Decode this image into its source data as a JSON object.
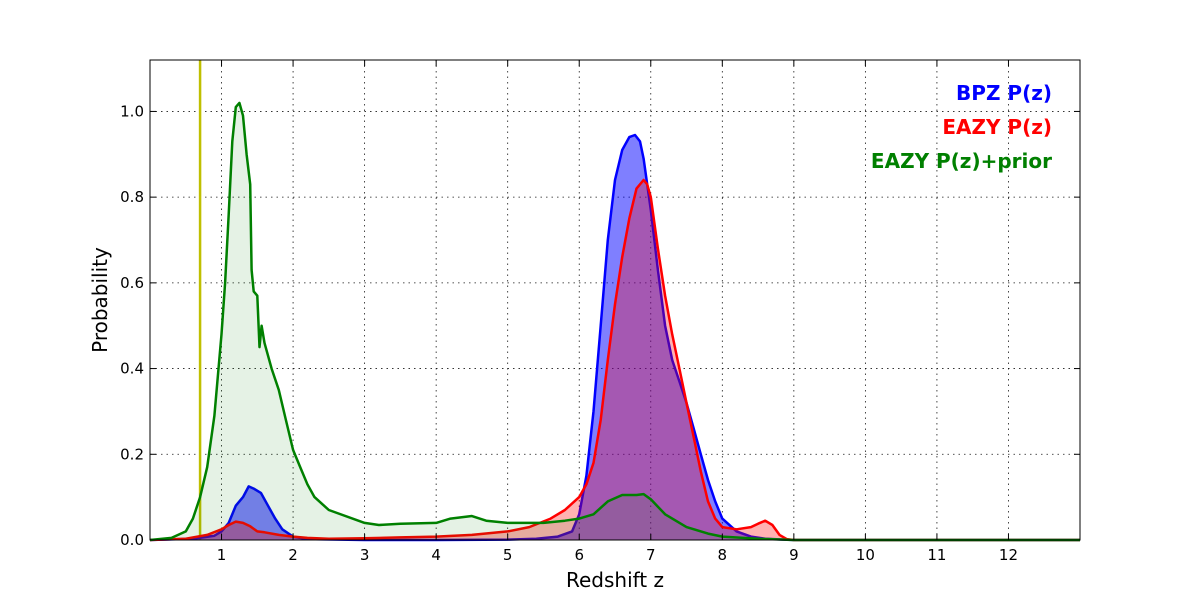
{
  "chart_data": {
    "type": "area",
    "xlabel": "Redshift z",
    "ylabel": "Probability",
    "xlim": [
      0,
      13
    ],
    "ylim": [
      0,
      1.12
    ],
    "xticks": [
      1,
      2,
      3,
      4,
      5,
      6,
      7,
      8,
      9,
      10,
      11,
      12
    ],
    "yticks": [
      0.0,
      0.2,
      0.4,
      0.6,
      0.8,
      1.0
    ],
    "xtick_labels": [
      "1",
      "2",
      "3",
      "4",
      "5",
      "6",
      "7",
      "8",
      "9",
      "10",
      "11",
      "12"
    ],
    "ytick_labels": [
      "0.0",
      "0.2",
      "0.4",
      "0.6",
      "0.8",
      "1.0"
    ],
    "grid": true,
    "legend_position": "top-right",
    "vertical_line": {
      "x": 0.7,
      "color": "#bfbf00"
    },
    "series": [
      {
        "name": "BPZ P(z)",
        "color": "#0000ff",
        "fill_opacity": 0.5,
        "x": [
          0.0,
          0.6,
          0.9,
          1.0,
          1.1,
          1.2,
          1.3,
          1.38,
          1.45,
          1.55,
          1.65,
          1.75,
          1.85,
          2.0,
          2.2,
          3.0,
          4.0,
          5.0,
          5.4,
          5.7,
          5.9,
          6.0,
          6.1,
          6.2,
          6.3,
          6.4,
          6.5,
          6.6,
          6.7,
          6.78,
          6.85,
          6.9,
          7.0,
          7.1,
          7.2,
          7.3,
          7.4,
          7.5,
          7.6,
          7.7,
          7.8,
          7.9,
          8.0,
          8.2,
          8.4,
          8.6,
          9.0,
          13.0
        ],
        "y": [
          0.0,
          0.003,
          0.01,
          0.02,
          0.04,
          0.08,
          0.1,
          0.125,
          0.12,
          0.11,
          0.08,
          0.05,
          0.025,
          0.008,
          0.002,
          0.0,
          0.0,
          0.001,
          0.003,
          0.008,
          0.02,
          0.06,
          0.15,
          0.3,
          0.5,
          0.7,
          0.84,
          0.91,
          0.94,
          0.945,
          0.93,
          0.89,
          0.77,
          0.63,
          0.5,
          0.42,
          0.37,
          0.32,
          0.26,
          0.2,
          0.14,
          0.09,
          0.05,
          0.02,
          0.008,
          0.003,
          0.0,
          0.0
        ]
      },
      {
        "name": "EAZY P(z)",
        "color": "#ff0000",
        "fill_opacity": 0.3,
        "x": [
          0.0,
          0.5,
          0.8,
          1.0,
          1.1,
          1.2,
          1.3,
          1.4,
          1.5,
          1.6,
          1.8,
          2.0,
          2.2,
          2.5,
          3.0,
          3.5,
          4.0,
          4.5,
          5.0,
          5.3,
          5.6,
          5.8,
          6.0,
          6.1,
          6.2,
          6.3,
          6.4,
          6.5,
          6.6,
          6.7,
          6.8,
          6.9,
          6.95,
          7.0,
          7.1,
          7.2,
          7.3,
          7.4,
          7.5,
          7.6,
          7.7,
          7.8,
          7.9,
          8.0,
          8.2,
          8.4,
          8.5,
          8.6,
          8.7,
          8.8,
          8.9,
          9.0,
          13.0
        ],
        "y": [
          0.0,
          0.003,
          0.012,
          0.025,
          0.035,
          0.043,
          0.04,
          0.032,
          0.02,
          0.018,
          0.012,
          0.008,
          0.005,
          0.003,
          0.004,
          0.006,
          0.008,
          0.012,
          0.02,
          0.03,
          0.05,
          0.07,
          0.1,
          0.13,
          0.18,
          0.28,
          0.42,
          0.55,
          0.66,
          0.75,
          0.82,
          0.84,
          0.83,
          0.8,
          0.68,
          0.57,
          0.48,
          0.4,
          0.32,
          0.24,
          0.16,
          0.09,
          0.05,
          0.03,
          0.025,
          0.03,
          0.038,
          0.045,
          0.035,
          0.012,
          0.002,
          0.0,
          0.0
        ]
      },
      {
        "name": "EAZY P(z)+prior",
        "color": "#008000",
        "fill_opacity": 0.1,
        "x": [
          0.0,
          0.3,
          0.5,
          0.6,
          0.7,
          0.8,
          0.9,
          1.0,
          1.05,
          1.1,
          1.15,
          1.2,
          1.25,
          1.3,
          1.35,
          1.4,
          1.42,
          1.45,
          1.5,
          1.53,
          1.56,
          1.6,
          1.7,
          1.8,
          1.9,
          2.0,
          2.1,
          2.2,
          2.3,
          2.5,
          3.0,
          3.2,
          3.5,
          4.0,
          4.2,
          4.5,
          4.7,
          5.0,
          5.5,
          5.8,
          6.0,
          6.2,
          6.4,
          6.6,
          6.8,
          6.9,
          7.0,
          7.2,
          7.5,
          7.8,
          8.0,
          8.5,
          9.0,
          13.0
        ],
        "y": [
          0.0,
          0.005,
          0.02,
          0.05,
          0.1,
          0.17,
          0.29,
          0.48,
          0.6,
          0.76,
          0.93,
          1.01,
          1.02,
          0.99,
          0.9,
          0.83,
          0.63,
          0.58,
          0.57,
          0.45,
          0.5,
          0.46,
          0.4,
          0.35,
          0.28,
          0.21,
          0.17,
          0.13,
          0.1,
          0.07,
          0.04,
          0.035,
          0.038,
          0.04,
          0.05,
          0.056,
          0.045,
          0.04,
          0.04,
          0.045,
          0.05,
          0.06,
          0.09,
          0.105,
          0.105,
          0.107,
          0.095,
          0.06,
          0.03,
          0.015,
          0.008,
          0.003,
          0.0,
          0.0
        ]
      }
    ]
  }
}
